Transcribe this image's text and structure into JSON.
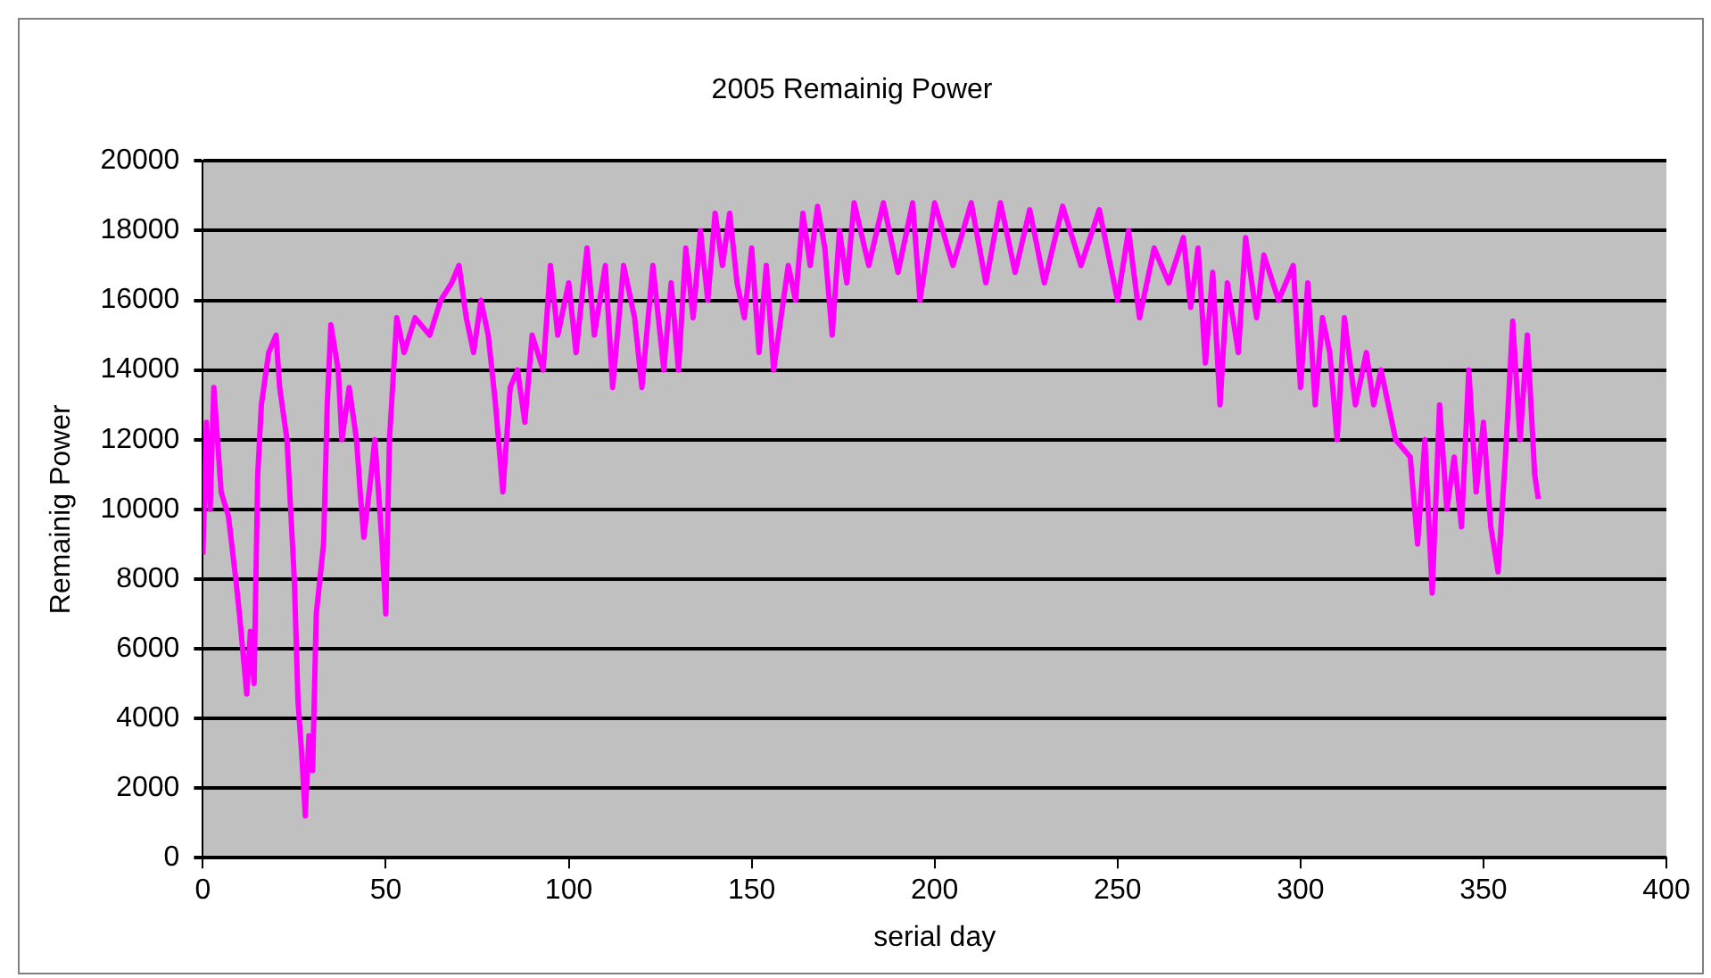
{
  "chart_data": {
    "type": "line",
    "title": "2005 Remainig Power",
    "xlabel": "serial day",
    "ylabel": "Remainig Power",
    "xlim": [
      0,
      400
    ],
    "xticks": [
      0,
      50,
      100,
      150,
      200,
      250,
      300,
      350,
      400
    ],
    "ylim": [
      0,
      20000
    ],
    "yticks": [
      0,
      2000,
      4000,
      6000,
      8000,
      10000,
      12000,
      14000,
      16000,
      18000,
      20000
    ],
    "grid": "y",
    "legend": false,
    "marker": "none",
    "line_style": "solid",
    "series": [
      {
        "color": "#ff00ff",
        "x": [
          0,
          1,
          2,
          3,
          5,
          7,
          9,
          10,
          12,
          13,
          14,
          15,
          16,
          18,
          20,
          21,
          23,
          25,
          26,
          27,
          28,
          29,
          30,
          31,
          33,
          34,
          35,
          37,
          38,
          40,
          42,
          43,
          44,
          46,
          47,
          49,
          50,
          51,
          53,
          55,
          58,
          62,
          65,
          68,
          70,
          72,
          74,
          76,
          78,
          80,
          82,
          84,
          86,
          88,
          90,
          93,
          95,
          97,
          100,
          102,
          105,
          107,
          110,
          112,
          115,
          118,
          120,
          123,
          126,
          128,
          130,
          132,
          134,
          136,
          138,
          140,
          142,
          144,
          146,
          148,
          150,
          152,
          154,
          156,
          158,
          160,
          162,
          164,
          166,
          168,
          170,
          172,
          174,
          176,
          178,
          182,
          186,
          190,
          194,
          196,
          200,
          205,
          210,
          214,
          218,
          222,
          226,
          230,
          235,
          240,
          245,
          250,
          253,
          256,
          260,
          264,
          268,
          270,
          272,
          274,
          276,
          278,
          280,
          283,
          285,
          288,
          290,
          294,
          298,
          300,
          302,
          304,
          306,
          308,
          310,
          312,
          315,
          318,
          320,
          322,
          326,
          330,
          332,
          334,
          336,
          338,
          340,
          342,
          344,
          346,
          348,
          350,
          352,
          354,
          356,
          358,
          360,
          362,
          364,
          365
        ],
        "values": [
          8700,
          12500,
          10000,
          13500,
          10500,
          9800,
          8000,
          7000,
          4700,
          6500,
          5000,
          11000,
          13000,
          14500,
          15000,
          13500,
          12000,
          8000,
          4500,
          3000,
          1200,
          3500,
          2500,
          7000,
          9000,
          13000,
          15300,
          14000,
          12000,
          13500,
          12000,
          10500,
          9200,
          11000,
          12000,
          9000,
          7000,
          12000,
          15500,
          14500,
          15500,
          15000,
          16000,
          16500,
          17000,
          15500,
          14500,
          16000,
          15000,
          13000,
          10500,
          13500,
          14000,
          12500,
          15000,
          14000,
          17000,
          15000,
          16500,
          14500,
          17500,
          15000,
          17000,
          13500,
          17000,
          15500,
          13500,
          17000,
          14000,
          16500,
          14000,
          17500,
          15500,
          18000,
          16000,
          18500,
          17000,
          18500,
          16500,
          15500,
          17500,
          14500,
          17000,
          14000,
          15500,
          17000,
          16000,
          18500,
          17000,
          18700,
          17500,
          15000,
          18000,
          16500,
          18800,
          17000,
          18800,
          16800,
          18800,
          16000,
          18800,
          17000,
          18800,
          16500,
          18800,
          16800,
          18600,
          16500,
          18700,
          17000,
          18600,
          16000,
          18000,
          15500,
          17500,
          16500,
          17800,
          15800,
          17500,
          14200,
          16800,
          13000,
          16500,
          14500,
          17800,
          15500,
          17300,
          16000,
          17000,
          13500,
          16500,
          13000,
          15500,
          14500,
          12000,
          15500,
          13000,
          14500,
          13000,
          14000,
          12000,
          11500,
          9000,
          12000,
          7600,
          13000,
          10000,
          11500,
          9500,
          14000,
          10500,
          12500,
          9500,
          8200,
          11500,
          15400,
          12000,
          15000,
          11000,
          10300
        ]
      }
    ]
  }
}
